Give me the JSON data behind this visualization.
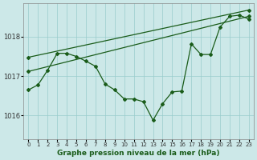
{
  "xlabel": "Graphe pression niveau de la mer (hPa)",
  "bg_color": "#cce8e8",
  "grid_color": "#99cccc",
  "line_color": "#1a5c1a",
  "xlim": [
    -0.5,
    23.5
  ],
  "ylim": [
    1015.4,
    1018.85
  ],
  "yticks": [
    1016,
    1017,
    1018
  ],
  "xticks": [
    0,
    1,
    2,
    3,
    4,
    5,
    6,
    7,
    8,
    9,
    10,
    11,
    12,
    13,
    14,
    15,
    16,
    17,
    18,
    19,
    20,
    21,
    22,
    23
  ],
  "line1_x": [
    0,
    23
  ],
  "line1_y": [
    1017.48,
    1018.68
  ],
  "line2_x": [
    0,
    23
  ],
  "line2_y": [
    1017.12,
    1018.52
  ],
  "line3_x": [
    0,
    1,
    2,
    3,
    4,
    5,
    6,
    7,
    8,
    9,
    10,
    11,
    12,
    13,
    14,
    15,
    16,
    17,
    18,
    19,
    20,
    21,
    22,
    23
  ],
  "line3_y": [
    1016.65,
    1016.78,
    1017.15,
    1017.58,
    1017.58,
    1017.5,
    1017.38,
    1017.25,
    1016.8,
    1016.65,
    1016.42,
    1016.42,
    1016.35,
    1015.88,
    1016.3,
    1016.6,
    1016.62,
    1017.82,
    1017.55,
    1017.55,
    1018.25,
    1018.52,
    1018.55,
    1018.45
  ]
}
